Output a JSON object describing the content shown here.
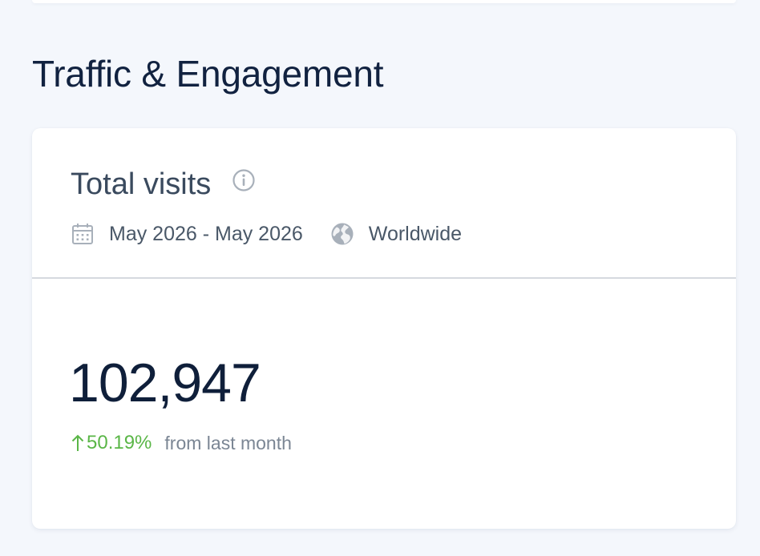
{
  "section": {
    "title": "Traffic & Engagement"
  },
  "card": {
    "title": "Total visits",
    "info_icon": "info-icon",
    "date_icon": "calendar-icon",
    "date_range": "May 2026 - May 2026",
    "region_icon": "globe-icon",
    "region": "Worldwide",
    "metric_value": "102,947",
    "change_icon": "arrow-up-icon",
    "change_value": "50.19%",
    "change_suffix": "from last month"
  },
  "colors": {
    "positive": "#5ab647",
    "page_background": "#f4f7fc",
    "heading": "#112240"
  }
}
